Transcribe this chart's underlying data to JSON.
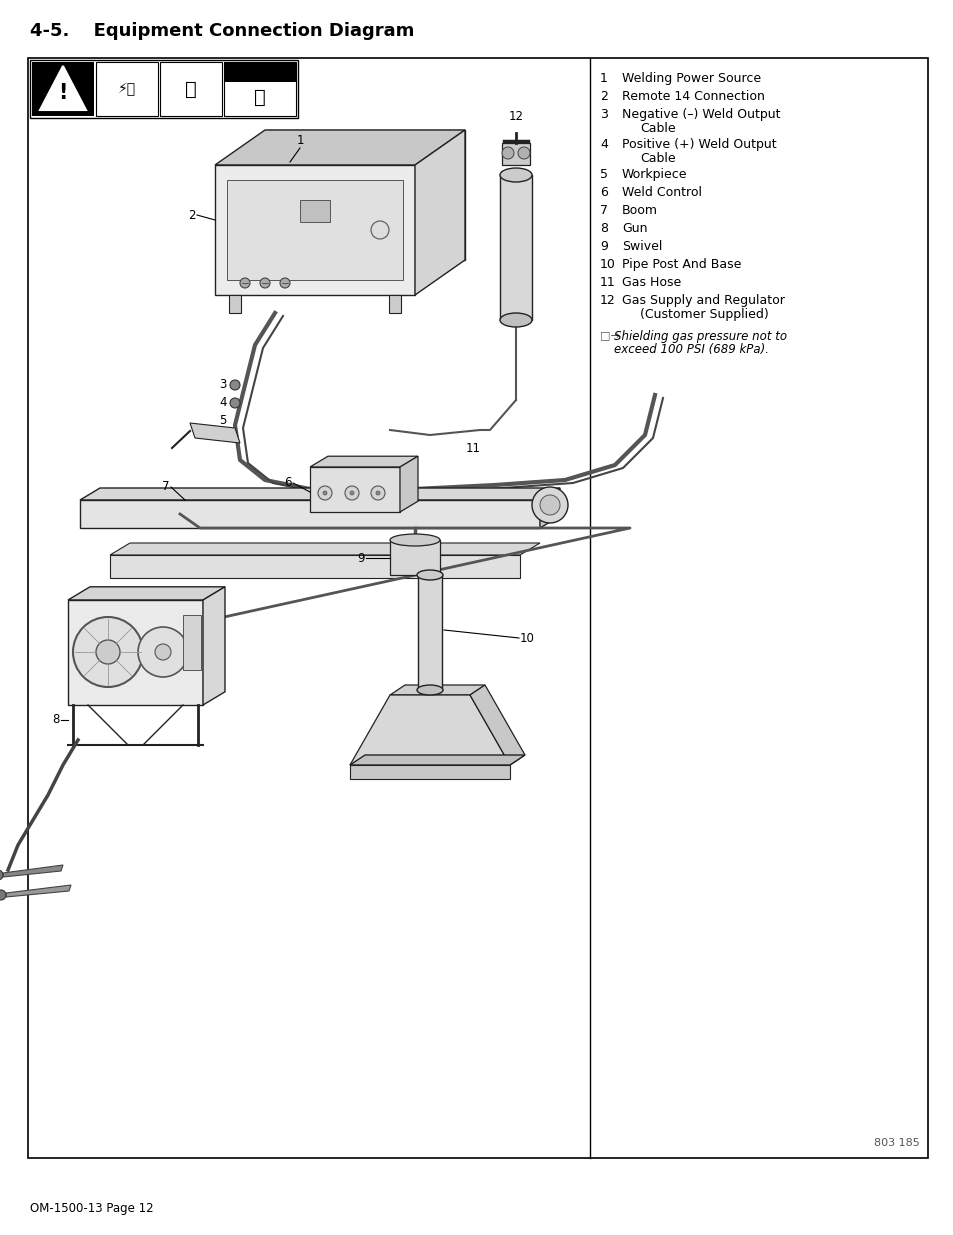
{
  "title": "4-5.  Equipment Connection Diagram",
  "page_footer": "OM-1500-13 Page 12",
  "page_number_right": "803 185",
  "legend_items": [
    {
      "num": "1",
      "text": "Welding Power Source",
      "wrap2": null
    },
    {
      "num": "2",
      "text": "Remote 14 Connection",
      "wrap2": null
    },
    {
      "num": "3",
      "text": "Negative (–) Weld Output",
      "wrap2": "Cable"
    },
    {
      "num": "4",
      "text": "Positive (+) Weld Output",
      "wrap2": "Cable"
    },
    {
      "num": "5",
      "text": "Workpiece",
      "wrap2": null
    },
    {
      "num": "6",
      "text": "Weld Control",
      "wrap2": null
    },
    {
      "num": "7",
      "text": "Boom",
      "wrap2": null
    },
    {
      "num": "8",
      "text": "Gun",
      "wrap2": null
    },
    {
      "num": "9",
      "text": "Swivel",
      "wrap2": null
    },
    {
      "num": "10",
      "text": "Pipe Post And Base",
      "wrap2": null
    },
    {
      "num": "11",
      "text": "Gas Hose",
      "wrap2": null
    },
    {
      "num": "12",
      "text": "Gas Supply and Regulator",
      "wrap2": "(Customer Supplied)"
    }
  ],
  "note_line1": "Shielding gas pressure not to",
  "note_line2": "exceed 100 PSI (689 kPa).",
  "bg_color": "#ffffff",
  "text_color": "#000000",
  "diagram_line_color": "#222222",
  "diagram_fill_light": "#e8e8e8",
  "diagram_fill_mid": "#d0d0d0",
  "diagram_fill_dark": "#b8b8b8",
  "title_fontsize": 13.0,
  "legend_fontsize": 9.0,
  "note_fontsize": 8.5,
  "footer_fontsize": 8.5,
  "label_fontsize": 8.5
}
